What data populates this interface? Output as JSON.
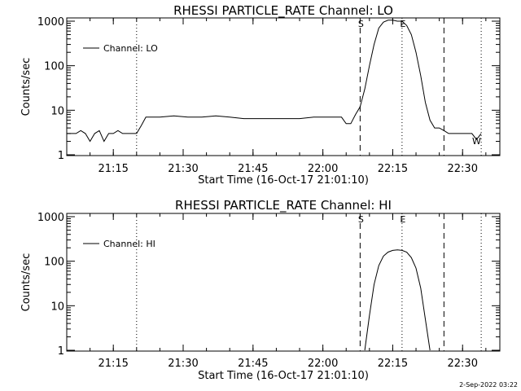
{
  "footer": {
    "timestamp": "2-Sep-2022 03:22"
  },
  "chart_data": [
    {
      "type": "line",
      "title": "RHESSI PARTICLE_RATE Channel: LO",
      "xlabel": "Start Time (16-Oct-17 21:01:10)",
      "ylabel": "Counts/sec",
      "yscale": "log",
      "ylim": [
        1,
        1000
      ],
      "xlim": [
        "21:05",
        "22:38"
      ],
      "x_ticks": [
        "21:15",
        "21:30",
        "21:45",
        "22:00",
        "22:15",
        "22:30"
      ],
      "y_ticks": [
        "1",
        "10",
        "100",
        "1000"
      ],
      "legend": {
        "position": "top-left",
        "entries": [
          "Channel: LO"
        ]
      },
      "markers": [
        {
          "time": "21:20",
          "style": "dotted",
          "label": ""
        },
        {
          "time": "22:08",
          "style": "dashed",
          "label": "S"
        },
        {
          "time": "22:17",
          "style": "dotted",
          "label": "E"
        },
        {
          "time": "22:26",
          "style": "dashed",
          "label": ""
        },
        {
          "time": "22:34",
          "style": "dotted",
          "label": ""
        }
      ],
      "corner_labels": [
        {
          "time": "22:33",
          "label": "W"
        }
      ],
      "series": [
        {
          "name": "Channel: LO",
          "x": [
            "21:05",
            "21:07",
            "21:08",
            "21:09",
            "21:10",
            "21:11",
            "21:12",
            "21:13",
            "21:14",
            "21:15",
            "21:16",
            "21:17",
            "21:18",
            "21:19",
            "21:20",
            "21:21",
            "21:22",
            "21:25",
            "21:28",
            "21:31",
            "21:34",
            "21:37",
            "21:40",
            "21:43",
            "21:46",
            "21:49",
            "21:52",
            "21:55",
            "21:58",
            "22:01",
            "22:04",
            "22:05",
            "22:06",
            "22:07",
            "22:08",
            "22:09",
            "22:10",
            "22:11",
            "22:12",
            "22:13",
            "22:14",
            "22:15",
            "22:16",
            "22:17",
            "22:18",
            "22:19",
            "22:20",
            "22:21",
            "22:22",
            "22:23",
            "22:24",
            "22:25",
            "22:26",
            "22:27",
            "22:28",
            "22:29",
            "22:30",
            "22:31",
            "22:32",
            "22:33",
            "22:34"
          ],
          "values": [
            3,
            3,
            3.5,
            3,
            2,
            3,
            3.5,
            2,
            3,
            3,
            3.5,
            3,
            3,
            3,
            3,
            4.5,
            7,
            7,
            7.5,
            7,
            7,
            7.5,
            7,
            6.5,
            6.5,
            6.5,
            6.5,
            6.5,
            7,
            7,
            7,
            5,
            5,
            8,
            12,
            30,
            100,
            300,
            700,
            950,
            1050,
            1050,
            1000,
            1000,
            800,
            500,
            200,
            60,
            15,
            6,
            4,
            4,
            3.5,
            3,
            3,
            3,
            3,
            3,
            3,
            2.2,
            3
          ]
        }
      ]
    },
    {
      "type": "line",
      "title": "RHESSI PARTICLE_RATE Channel: HI",
      "xlabel": "Start Time (16-Oct-17 21:01:10)",
      "ylabel": "Counts/sec",
      "yscale": "log",
      "ylim": [
        1,
        1000
      ],
      "xlim": [
        "21:05",
        "22:38"
      ],
      "x_ticks": [
        "21:15",
        "21:30",
        "21:45",
        "22:00",
        "22:15",
        "22:30"
      ],
      "y_ticks": [
        "1",
        "10",
        "100",
        "1000"
      ],
      "legend": {
        "position": "top-left",
        "entries": [
          "Channel: HI"
        ]
      },
      "markers": [
        {
          "time": "21:20",
          "style": "dotted",
          "label": ""
        },
        {
          "time": "22:08",
          "style": "dashed",
          "label": "S"
        },
        {
          "time": "22:17",
          "style": "dotted",
          "label": "E"
        },
        {
          "time": "22:26",
          "style": "dashed",
          "label": ""
        },
        {
          "time": "22:34",
          "style": "dotted",
          "label": ""
        }
      ],
      "corner_labels": [],
      "series": [
        {
          "name": "Channel: HI",
          "x": [
            "22:09",
            "22:10",
            "22:11",
            "22:12",
            "22:13",
            "22:14",
            "22:15",
            "22:16",
            "22:17",
            "22:18",
            "22:19",
            "22:20",
            "22:21",
            "22:22",
            "22:23"
          ],
          "values": [
            1,
            6,
            30,
            80,
            130,
            160,
            175,
            180,
            175,
            160,
            120,
            70,
            25,
            5,
            1
          ]
        }
      ]
    }
  ]
}
